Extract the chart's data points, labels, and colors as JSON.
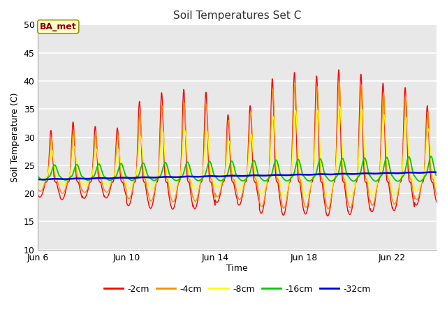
{
  "title": "Soil Temperatures Set C",
  "xlabel": "Time",
  "ylabel": "Soil Temperature (C)",
  "ylim": [
    10,
    50
  ],
  "yticks": [
    10,
    15,
    20,
    25,
    30,
    35,
    40,
    45,
    50
  ],
  "fig_bg": "#ffffff",
  "plot_bg": "#e8e8e8",
  "series": [
    {
      "label": "-2cm",
      "color": "#ff0000",
      "lw": 1.0
    },
    {
      "label": "-4cm",
      "color": "#ff8c00",
      "lw": 1.0
    },
    {
      "label": "-8cm",
      "color": "#ffff00",
      "lw": 1.0
    },
    {
      "label": "-16cm",
      "color": "#00cc00",
      "lw": 1.3
    },
    {
      "label": "-32cm",
      "color": "#0000dd",
      "lw": 1.8
    }
  ],
  "xstart_day": 6,
  "xend_day": 24,
  "xtick_days": [
    6,
    10,
    14,
    18,
    22
  ],
  "xtick_labels": [
    "Jun 6",
    "Jun 10",
    "Jun 14",
    "Jun 18",
    "Jun 22"
  ],
  "ba_met_text": "BA_met",
  "ba_met_color": "#8b0000",
  "ba_met_bg": "#ffffcc",
  "ba_met_edge": "#999900"
}
